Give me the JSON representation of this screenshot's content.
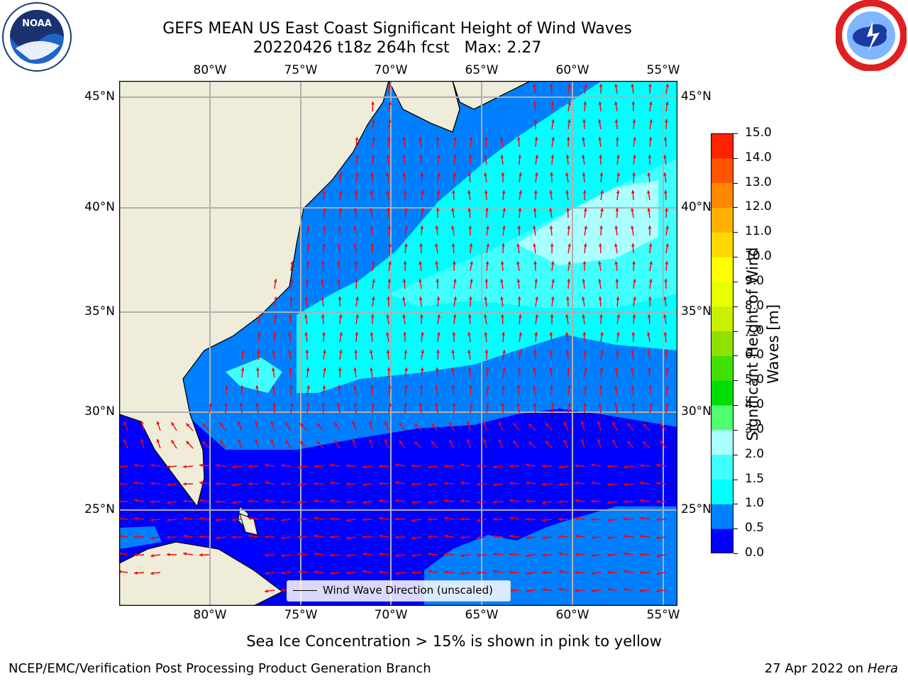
{
  "title": {
    "line1": "GEFS MEAN US East Coast Significant Height of Wind Waves",
    "line2": "20220426 t18z 264h fcst   Max: 2.27"
  },
  "logos": {
    "noaa": "NOAA",
    "nws": "NATIONAL WEATHER SERVICE"
  },
  "map": {
    "lon_labels": [
      "80°W",
      "75°W",
      "70°W",
      "65°W",
      "60°W",
      "55°W"
    ],
    "lat_labels": [
      "45°N",
      "40°N",
      "35°N",
      "30°N",
      "25°N"
    ],
    "legend": "Wind Wave Direction (unscaled)",
    "land_color": "#efedda",
    "grid_color": "#b0b0b0",
    "arrow_color": "#ff0000"
  },
  "colorbar": {
    "label_line1": "Significant Height of Wind",
    "label_line2": "Waves [m]",
    "ticks": [
      "0.0",
      "0.5",
      "1.0",
      "1.5",
      "2.0",
      "3.0",
      "4.0",
      "5.0",
      "6.0",
      "7.0",
      "8.0",
      "9.0",
      "10.0",
      "11.0",
      "12.0",
      "13.0",
      "14.0",
      "15.0"
    ],
    "colors": [
      "#0000ff",
      "#007fff",
      "#00ffff",
      "#40ffff",
      "#aaffff",
      "#50ff70",
      "#00dd00",
      "#40e000",
      "#90e000",
      "#c8f000",
      "#e8ff00",
      "#ffff00",
      "#ffd800",
      "#ffb000",
      "#ff8800",
      "#ff5500",
      "#ff2200"
    ]
  },
  "subtitle": "Sea Ice Concentration > 15% is shown in pink to yellow",
  "footer": {
    "left": "NCEP/EMC/Verification Post Processing Product Generation Branch",
    "date": "27 Apr 2022 on ",
    "machine": "Hera"
  }
}
